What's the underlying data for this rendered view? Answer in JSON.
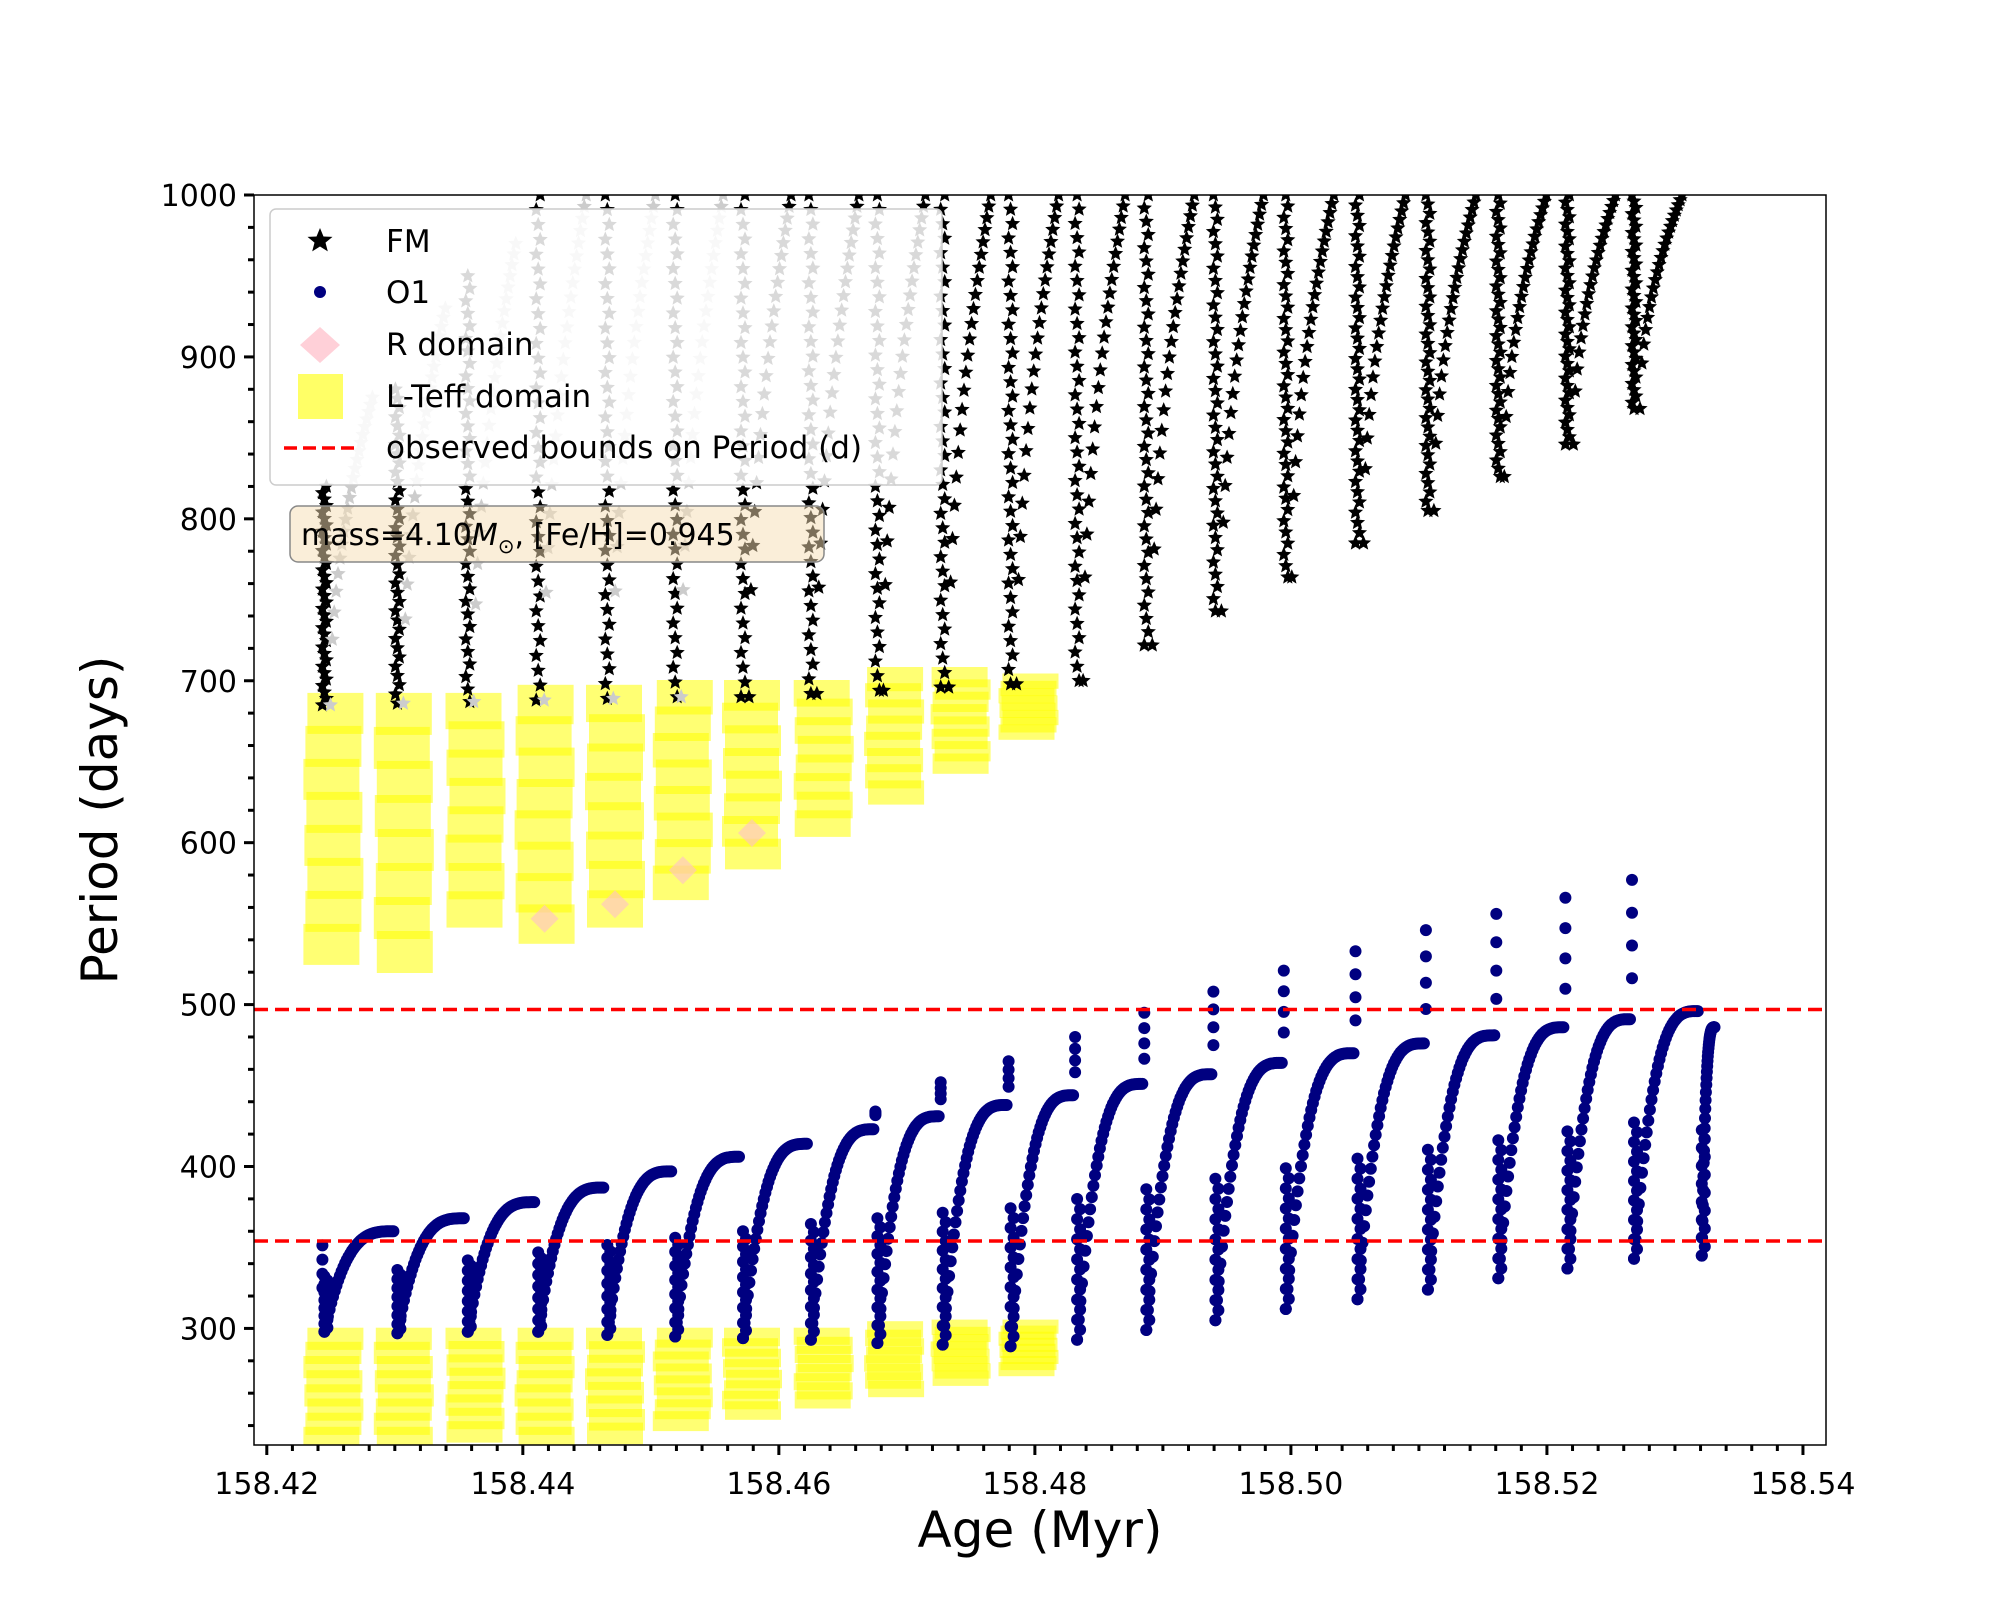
{
  "chart_data": {
    "type": "scatter",
    "xlabel": "Age (Myr)",
    "ylabel": "Period (days)",
    "xlim": [
      158.419,
      158.5418
    ],
    "ylim": [
      228,
      1000
    ],
    "xticks": [
      158.42,
      158.44,
      158.46,
      158.48,
      158.5,
      158.52,
      158.54
    ],
    "xtick_labels": [
      "158.42",
      "158.44",
      "158.46",
      "158.48",
      "158.50",
      "158.52",
      "158.54"
    ],
    "yticks": [
      300,
      400,
      500,
      600,
      700,
      800,
      900,
      1000
    ],
    "ytick_labels": [
      "300",
      "400",
      "500",
      "600",
      "700",
      "800",
      "900",
      "1000"
    ],
    "legend": {
      "placement": "upper-left",
      "entries": [
        {
          "key": "fm",
          "label": "FM",
          "marker": "star",
          "color": "#000000"
        },
        {
          "key": "o1",
          "label": "O1",
          "marker": "circle",
          "color": "#000080"
        },
        {
          "key": "r",
          "label": "R domain",
          "marker": "diamond",
          "color": "#ffc0cb"
        },
        {
          "key": "lteff",
          "label": "L-Teff domain",
          "marker": "square",
          "color": "#ffff00"
        },
        {
          "key": "bounds",
          "label": "observed bounds on Period (d)",
          "marker": "dashed-line",
          "color": "#ff0000"
        }
      ]
    },
    "annotation": {
      "prefix": "mass=4.10",
      "symbol": "M",
      "sub": "⊙",
      "suffix": ", [Fe/H]=0.945"
    },
    "observed_bounds": [
      354,
      497
    ],
    "pulse_ages": [
      158.4245,
      158.4302,
      158.4357,
      158.4412,
      158.4466,
      158.4519,
      158.4572,
      158.4625,
      158.4677,
      158.4728,
      158.4781,
      158.4833,
      158.4887,
      158.4941,
      158.4996,
      158.5052,
      158.5107,
      158.5162,
      158.5216,
      158.5268,
      158.5321
    ],
    "series": [
      {
        "name": "FM",
        "marker": "star",
        "color": "#000000",
        "faded_color": "#cccccc",
        "faded_count": 6,
        "cycles": [
          {
            "start_age": 158.4245,
            "min": 685,
            "max": 820,
            "peak": 875
          },
          {
            "start_age": 158.4302,
            "min": 686,
            "max": 880,
            "peak": 930
          },
          {
            "start_age": 158.4357,
            "min": 687,
            "max": 950,
            "peak": 970
          },
          {
            "start_age": 158.4412,
            "min": 688,
            "max": 1000,
            "peak": 1000
          },
          {
            "start_age": 158.4466,
            "min": 689,
            "max": 1000,
            "peak": 1000
          },
          {
            "start_age": 158.4519,
            "min": 690,
            "max": 1000,
            "peak": 1000
          },
          {
            "start_age": 158.4572,
            "min": 690,
            "max": 1000,
            "peak": 1000
          },
          {
            "start_age": 158.4625,
            "min": 692,
            "max": 1000,
            "peak": 1000
          },
          {
            "start_age": 158.4677,
            "min": 694,
            "max": 1000,
            "peak": 1000
          },
          {
            "start_age": 158.4728,
            "min": 696,
            "max": 1000,
            "peak": 1000
          },
          {
            "start_age": 158.4781,
            "min": 698,
            "max": 1000,
            "peak": 1000
          },
          {
            "start_age": 158.4833,
            "min": 700,
            "max": 1000,
            "peak": 1000
          },
          {
            "start_age": 158.4887,
            "min": 722,
            "max": 1000,
            "peak": 1000
          },
          {
            "start_age": 158.4941,
            "min": 743,
            "max": 1000,
            "peak": 1000
          },
          {
            "start_age": 158.4996,
            "min": 764,
            "max": 1000,
            "peak": 1000
          },
          {
            "start_age": 158.5052,
            "min": 785,
            "max": 1000,
            "peak": 1000
          },
          {
            "start_age": 158.5107,
            "min": 805,
            "max": 1000,
            "peak": 1000
          },
          {
            "start_age": 158.5162,
            "min": 826,
            "max": 1000,
            "peak": 1000
          },
          {
            "start_age": 158.5216,
            "min": 846,
            "max": 1000,
            "peak": 1000
          },
          {
            "start_age": 158.5268,
            "min": 868,
            "max": 1000,
            "peak": 1000
          }
        ]
      },
      {
        "name": "O1",
        "marker": "circle",
        "color": "#000080",
        "cycles": [
          {
            "start_age": 158.4245,
            "end_age": 158.4302,
            "min": 298,
            "max": 360,
            "spike": 325
          },
          {
            "start_age": 158.4302,
            "end_age": 158.4357,
            "min": 297,
            "max": 368,
            "spike": 0
          },
          {
            "start_age": 158.4357,
            "end_age": 158.4412,
            "min": 298,
            "max": 378,
            "spike": 0
          },
          {
            "start_age": 158.4412,
            "end_age": 158.4466,
            "min": 298,
            "max": 387,
            "spike": 0
          },
          {
            "start_age": 158.4466,
            "end_age": 158.4519,
            "min": 296,
            "max": 397,
            "spike": 0
          },
          {
            "start_age": 158.4519,
            "end_age": 158.4572,
            "min": 295,
            "max": 406,
            "spike": 0
          },
          {
            "start_age": 158.4572,
            "end_age": 158.4625,
            "min": 294,
            "max": 414,
            "spike": 0
          },
          {
            "start_age": 158.4625,
            "end_age": 158.4677,
            "min": 293,
            "max": 423,
            "spike": 0
          },
          {
            "start_age": 158.4677,
            "end_age": 158.4728,
            "min": 291,
            "max": 431,
            "spike": 434
          },
          {
            "start_age": 158.4728,
            "end_age": 158.4781,
            "min": 290,
            "max": 438,
            "spike": 452
          },
          {
            "start_age": 158.4781,
            "end_age": 158.4833,
            "min": 289,
            "max": 444,
            "spike": 465
          },
          {
            "start_age": 158.4833,
            "end_age": 158.4887,
            "min": 293,
            "max": 451,
            "spike": 480
          },
          {
            "start_age": 158.4887,
            "end_age": 158.4941,
            "min": 299,
            "max": 457,
            "spike": 495
          },
          {
            "start_age": 158.4941,
            "end_age": 158.4996,
            "min": 305,
            "max": 464,
            "spike": 508
          },
          {
            "start_age": 158.4996,
            "end_age": 158.5052,
            "min": 312,
            "max": 470,
            "spike": 521
          },
          {
            "start_age": 158.5052,
            "end_age": 158.5107,
            "min": 318,
            "max": 476,
            "spike": 533
          },
          {
            "start_age": 158.5107,
            "end_age": 158.5162,
            "min": 324,
            "max": 481,
            "spike": 546
          },
          {
            "start_age": 158.5162,
            "end_age": 158.5216,
            "min": 331,
            "max": 486,
            "spike": 556
          },
          {
            "start_age": 158.5216,
            "end_age": 158.5268,
            "min": 337,
            "max": 491,
            "spike": 566
          },
          {
            "start_age": 158.5268,
            "end_age": 158.5321,
            "min": 343,
            "max": 496,
            "spike": 577
          },
          {
            "start_age": 158.5321,
            "end_age": 158.5334,
            "min": 345,
            "max": 486,
            "spike": 0
          }
        ]
      },
      {
        "name": "L-Teff domain (FM)",
        "marker": "square",
        "color": "#ffff00",
        "blocks": [
          {
            "age": 158.4252,
            "pmin": 527,
            "pmax": 690
          },
          {
            "age": 158.4307,
            "pmin": 522,
            "pmax": 690
          },
          {
            "age": 158.4363,
            "pmin": 550,
            "pmax": 690
          },
          {
            "age": 158.4417,
            "pmin": 540,
            "pmax": 695
          },
          {
            "age": 158.4472,
            "pmin": 550,
            "pmax": 695
          },
          {
            "age": 158.4525,
            "pmin": 567,
            "pmax": 698
          },
          {
            "age": 158.4579,
            "pmin": 586,
            "pmax": 698
          },
          {
            "age": 158.4635,
            "pmin": 606,
            "pmax": 698
          },
          {
            "age": 158.469,
            "pmin": 626,
            "pmax": 706
          },
          {
            "age": 158.4742,
            "pmin": 645,
            "pmax": 706
          },
          {
            "age": 158.4795,
            "pmin": 666,
            "pmax": 702
          }
        ]
      },
      {
        "name": "L-Teff domain (O1)",
        "marker": "square",
        "color": "#ffff00",
        "blocks": [
          {
            "age": 158.4252,
            "pmin": 228,
            "pmax": 298
          },
          {
            "age": 158.4307,
            "pmin": 228,
            "pmax": 298
          },
          {
            "age": 158.4363,
            "pmin": 232,
            "pmax": 298
          },
          {
            "age": 158.4417,
            "pmin": 228,
            "pmax": 298
          },
          {
            "age": 158.4472,
            "pmin": 231,
            "pmax": 298
          },
          {
            "age": 158.4525,
            "pmin": 239,
            "pmax": 298
          },
          {
            "age": 158.4579,
            "pmin": 246,
            "pmax": 298
          },
          {
            "age": 158.4635,
            "pmin": 253,
            "pmax": 298
          },
          {
            "age": 158.469,
            "pmin": 260,
            "pmax": 302
          },
          {
            "age": 158.4742,
            "pmin": 267,
            "pmax": 303
          },
          {
            "age": 158.4795,
            "pmin": 273,
            "pmax": 303
          }
        ]
      },
      {
        "name": "R domain",
        "marker": "diamond",
        "color": "#ffc0cb",
        "points": [
          {
            "age": 158.4417,
            "period": 553
          },
          {
            "age": 158.4472,
            "period": 562
          },
          {
            "age": 158.4525,
            "period": 583
          },
          {
            "age": 158.4579,
            "period": 606
          }
        ]
      }
    ]
  }
}
